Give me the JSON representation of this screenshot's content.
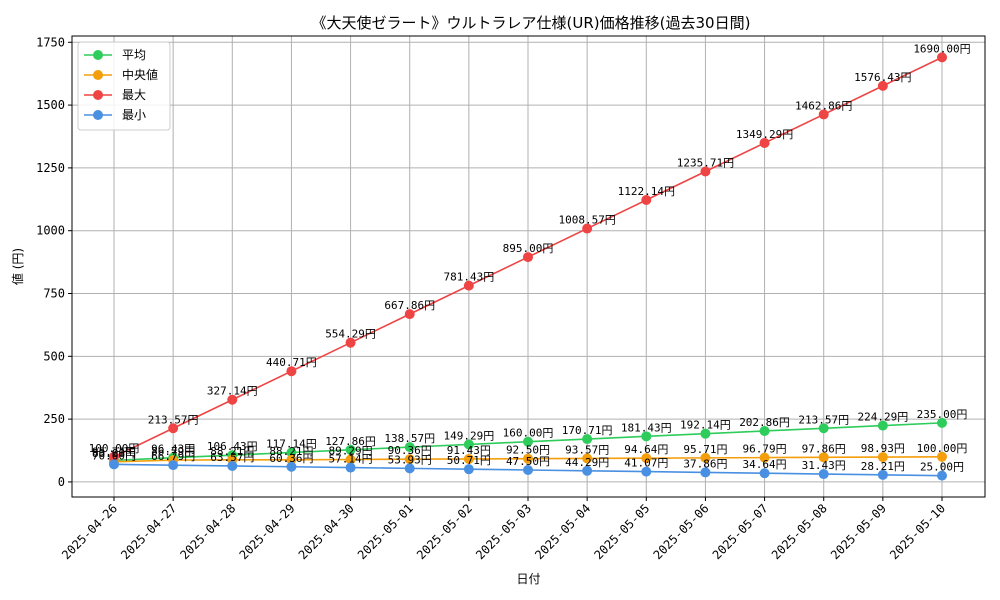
{
  "chart_data": {
    "type": "line",
    "title": "《大天使ゼラート》ウルトラレア仕様(UR)価格推移(過去30日間)",
    "xlabel": "日付",
    "ylabel": "値 (円)",
    "x": [
      "2025-04-26",
      "2025-04-27",
      "2025-04-28",
      "2025-04-29",
      "2025-04-30",
      "2025-05-01",
      "2025-05-02",
      "2025-05-03",
      "2025-05-04",
      "2025-05-05",
      "2025-05-06",
      "2025-05-07",
      "2025-05-08",
      "2025-05-09",
      "2025-05-10"
    ],
    "ylim": [
      -60,
      1775
    ],
    "yticks": [
      0,
      250,
      500,
      750,
      1000,
      1250,
      1500,
      1750
    ],
    "grid": true,
    "legend_position": "top-left",
    "label_suffix": "円",
    "series": [
      {
        "name": "平均",
        "color": "#2ecc5a",
        "values": [
          85.71,
          96.43,
          106.43,
          117.14,
          127.86,
          138.57,
          149.29,
          160.0,
          170.71,
          181.43,
          192.14,
          202.86,
          213.57,
          224.29,
          235.0
        ]
      },
      {
        "name": "中央値",
        "color": "#f59e0b",
        "values": [
          80.0,
          86.79,
          88.21,
          88.21,
          89.29,
          90.36,
          91.43,
          92.5,
          93.57,
          94.64,
          95.71,
          96.79,
          97.86,
          98.93,
          100.0
        ]
      },
      {
        "name": "最大",
        "color": "#ef4444",
        "values": [
          100.0,
          213.57,
          327.14,
          440.71,
          554.29,
          667.86,
          781.43,
          895.0,
          1008.57,
          1122.14,
          1235.71,
          1349.29,
          1462.86,
          1576.43,
          1690.0
        ]
      },
      {
        "name": "最小",
        "color": "#4a90e2",
        "values": [
          70.0,
          66.79,
          63.57,
          60.36,
          57.14,
          53.93,
          50.71,
          47.5,
          44.29,
          41.07,
          37.86,
          34.64,
          31.43,
          28.21,
          25.0
        ]
      }
    ]
  }
}
